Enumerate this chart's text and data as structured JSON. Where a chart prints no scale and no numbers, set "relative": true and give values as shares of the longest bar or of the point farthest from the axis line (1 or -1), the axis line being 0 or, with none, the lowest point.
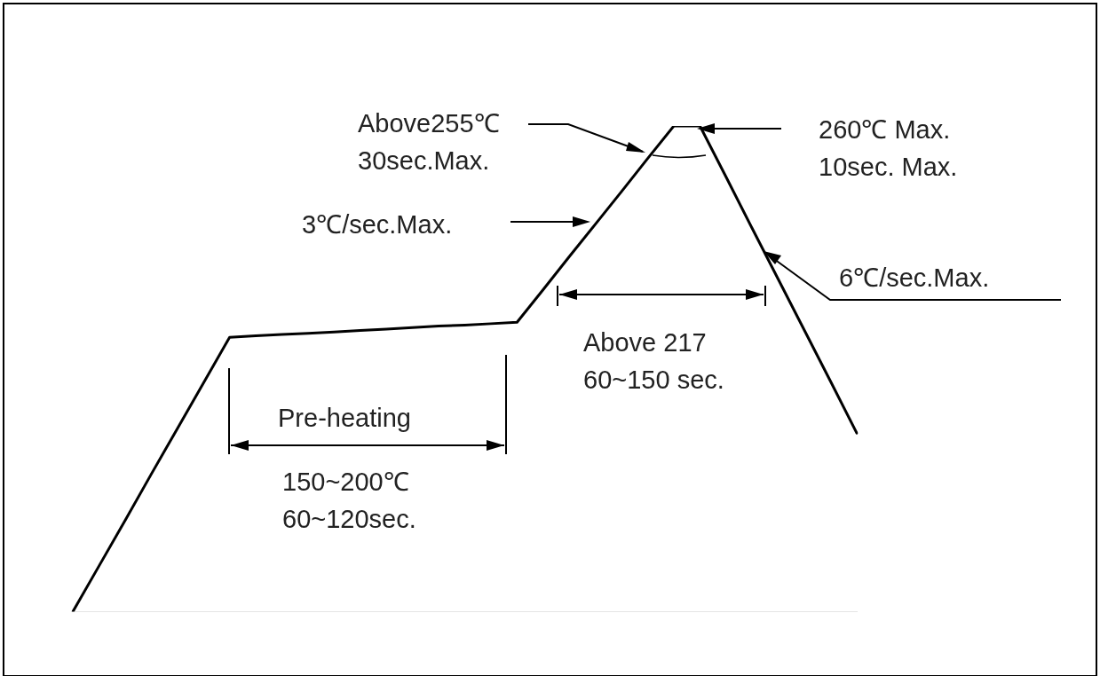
{
  "chart_data": {
    "type": "line",
    "relative": true,
    "marker": "none",
    "line_style": "solid",
    "legend": false,
    "categories": [
      null,
      null,
      null,
      null,
      null,
      null,
      null,
      null,
      null,
      null,
      null,
      null,
      null,
      null,
      null,
      null,
      null,
      null,
      null,
      null,
      null,
      null,
      null,
      null,
      null,
      null,
      null,
      null,
      null,
      null,
      null
    ],
    "series": [
      {
        "color": "#000000",
        "values": [
          0,
          0.094,
          0.188,
          0.283,
          0.377,
          0.471,
          0.565,
          0.568,
          0.571,
          0.573,
          0.576,
          0.579,
          0.582,
          0.585,
          0.588,
          0.59,
          0.593,
          0.596,
          0.663,
          0.731,
          0.798,
          0.865,
          0.933,
          1,
          1,
          0.895,
          0.789,
          0.684,
          0.579,
          0.474,
          0.368
        ]
      }
    ],
    "annotations": [
      "Above255℃\n30sec.Max.",
      "260℃ Max.\n10sec. Max.",
      "3℃/sec.Max.",
      "6℃/sec.Max.",
      "Above 217\n60~150 sec.",
      "Pre-heating",
      "150~200℃\n60~120sec."
    ]
  }
}
